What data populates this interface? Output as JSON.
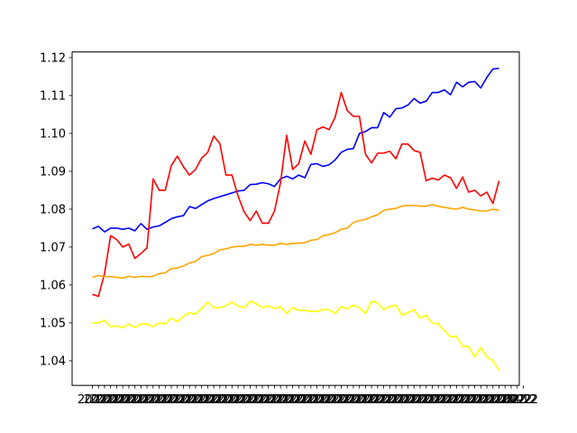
{
  "chart_data": {
    "type": "line",
    "title": "",
    "xlabel": "",
    "ylabel": "",
    "x_tick_labels": [
      "2022",
      "2022",
      "2022",
      "2022",
      "2022",
      "2022",
      "2022",
      "2022",
      "2022",
      "2022",
      "2022",
      "2022",
      "2022",
      "2022",
      "2022",
      "2022",
      "2022",
      "2022",
      "2022",
      "2022",
      "2022",
      "2022",
      "2022",
      "2022",
      "2022",
      "2022",
      "2022",
      "2022",
      "2022",
      "2022",
      "2022",
      "2022",
      "2022",
      "2022",
      "2022",
      "2022",
      "2022",
      "2022",
      "2022",
      "2022",
      "2022",
      "2022",
      "2022",
      "2022",
      "2022",
      "2022",
      "2022",
      "2022",
      "2022",
      "2022",
      "2022",
      "2022",
      "2022",
      "2022",
      "2022",
      "2022",
      "2022",
      "2022",
      "2022",
      "2022",
      "2022",
      "2022",
      "2022",
      "2022",
      "2022",
      "2022",
      "2022",
      "2022",
      "2022",
      "2022",
      "2022",
      "2022"
    ],
    "x_tick_last_label": "02-12",
    "ylim": [
      1.0335,
      1.1215
    ],
    "y_ticks": [
      1.04,
      1.05,
      1.06,
      1.07,
      1.08,
      1.09,
      1.1,
      1.11,
      1.12
    ],
    "y_tick_labels": [
      "1.04",
      "1.05",
      "1.06",
      "1.07",
      "1.08",
      "1.09",
      "1.10",
      "1.11",
      "1.12"
    ],
    "grid": false,
    "series": [
      {
        "color": "#0000ff",
        "values": [
          1.0748,
          1.0755,
          1.074,
          1.075,
          1.075,
          1.0747,
          1.075,
          1.0743,
          1.0762,
          1.0747,
          1.0753,
          1.0756,
          1.0765,
          1.0775,
          1.078,
          1.0783,
          1.0807,
          1.0802,
          1.0812,
          1.0822,
          1.0828,
          1.0833,
          1.0838,
          1.0843,
          1.0848,
          1.085,
          1.0865,
          1.0866,
          1.087,
          1.0867,
          1.086,
          1.088,
          1.0887,
          1.088,
          1.089,
          1.0883,
          1.0918,
          1.092,
          1.0913,
          1.0917,
          1.093,
          1.095,
          1.0958,
          1.096,
          1.1,
          1.1005,
          1.1015,
          1.1015,
          1.1055,
          1.1043,
          1.1065,
          1.1067,
          1.1075,
          1.1092,
          1.108,
          1.1085,
          1.1108,
          1.1108,
          1.1115,
          1.1102,
          1.1135,
          1.1123,
          1.1135,
          1.1137,
          1.112,
          1.1148,
          1.117,
          1.1172
        ]
      },
      {
        "color": "#ff0000",
        "values": [
          1.0575,
          1.057,
          1.063,
          1.073,
          1.072,
          1.07,
          1.0708,
          1.067,
          1.0683,
          1.0698,
          1.088,
          1.085,
          1.085,
          1.0915,
          1.094,
          1.0912,
          1.089,
          1.0905,
          1.0935,
          1.095,
          1.0993,
          1.0973,
          1.089,
          1.089,
          1.0835,
          1.0793,
          1.077,
          1.0795,
          1.0763,
          1.0763,
          1.0795,
          1.087,
          1.0995,
          1.0905,
          1.092,
          1.098,
          1.0945,
          1.101,
          1.1017,
          1.101,
          1.1043,
          1.1108,
          1.106,
          1.1045,
          1.1045,
          1.0945,
          1.0922,
          1.0948,
          1.0948,
          1.0953,
          1.0933,
          1.0972,
          1.0972,
          1.0955,
          1.095,
          1.0875,
          1.0882,
          1.0877,
          1.089,
          1.0883,
          1.0855,
          1.0885,
          1.0845,
          1.085,
          1.0835,
          1.0845,
          1.0815,
          1.0875
        ]
      },
      {
        "color": "#ffa500",
        "values": [
          1.062,
          1.0625,
          1.0622,
          1.0622,
          1.062,
          1.0618,
          1.0623,
          1.062,
          1.0623,
          1.0622,
          1.0623,
          1.063,
          1.0632,
          1.0643,
          1.0645,
          1.065,
          1.0658,
          1.0662,
          1.0675,
          1.0678,
          1.0683,
          1.0693,
          1.0695,
          1.07,
          1.0702,
          1.0702,
          1.0707,
          1.0705,
          1.0707,
          1.0705,
          1.0705,
          1.071,
          1.0707,
          1.071,
          1.071,
          1.0712,
          1.0718,
          1.072,
          1.073,
          1.0733,
          1.0738,
          1.0747,
          1.075,
          1.0765,
          1.077,
          1.0773,
          1.078,
          1.0785,
          1.0797,
          1.08,
          1.0802,
          1.0808,
          1.081,
          1.081,
          1.0808,
          1.0808,
          1.0812,
          1.0808,
          1.0805,
          1.0802,
          1.08,
          1.0805,
          1.08,
          1.0798,
          1.0795,
          1.0795,
          1.08,
          1.0797
        ]
      },
      {
        "color": "#ffff00",
        "values": [
          1.05,
          1.05,
          1.0507,
          1.049,
          1.0492,
          1.0487,
          1.0497,
          1.0488,
          1.0497,
          1.0497,
          1.049,
          1.05,
          1.0497,
          1.0513,
          1.0503,
          1.0517,
          1.0527,
          1.0523,
          1.0537,
          1.0555,
          1.054,
          1.054,
          1.0545,
          1.0555,
          1.0545,
          1.054,
          1.0557,
          1.055,
          1.054,
          1.0545,
          1.0538,
          1.0543,
          1.0525,
          1.054,
          1.0533,
          1.0533,
          1.053,
          1.053,
          1.0535,
          1.0535,
          1.0525,
          1.0543,
          1.0537,
          1.0547,
          1.054,
          1.0525,
          1.0557,
          1.0553,
          1.0535,
          1.0543,
          1.0547,
          1.052,
          1.0527,
          1.0535,
          1.0512,
          1.052,
          1.05,
          1.0497,
          1.048,
          1.0463,
          1.0465,
          1.0438,
          1.0437,
          1.041,
          1.0435,
          1.041,
          1.04,
          1.0375
        ]
      }
    ]
  }
}
